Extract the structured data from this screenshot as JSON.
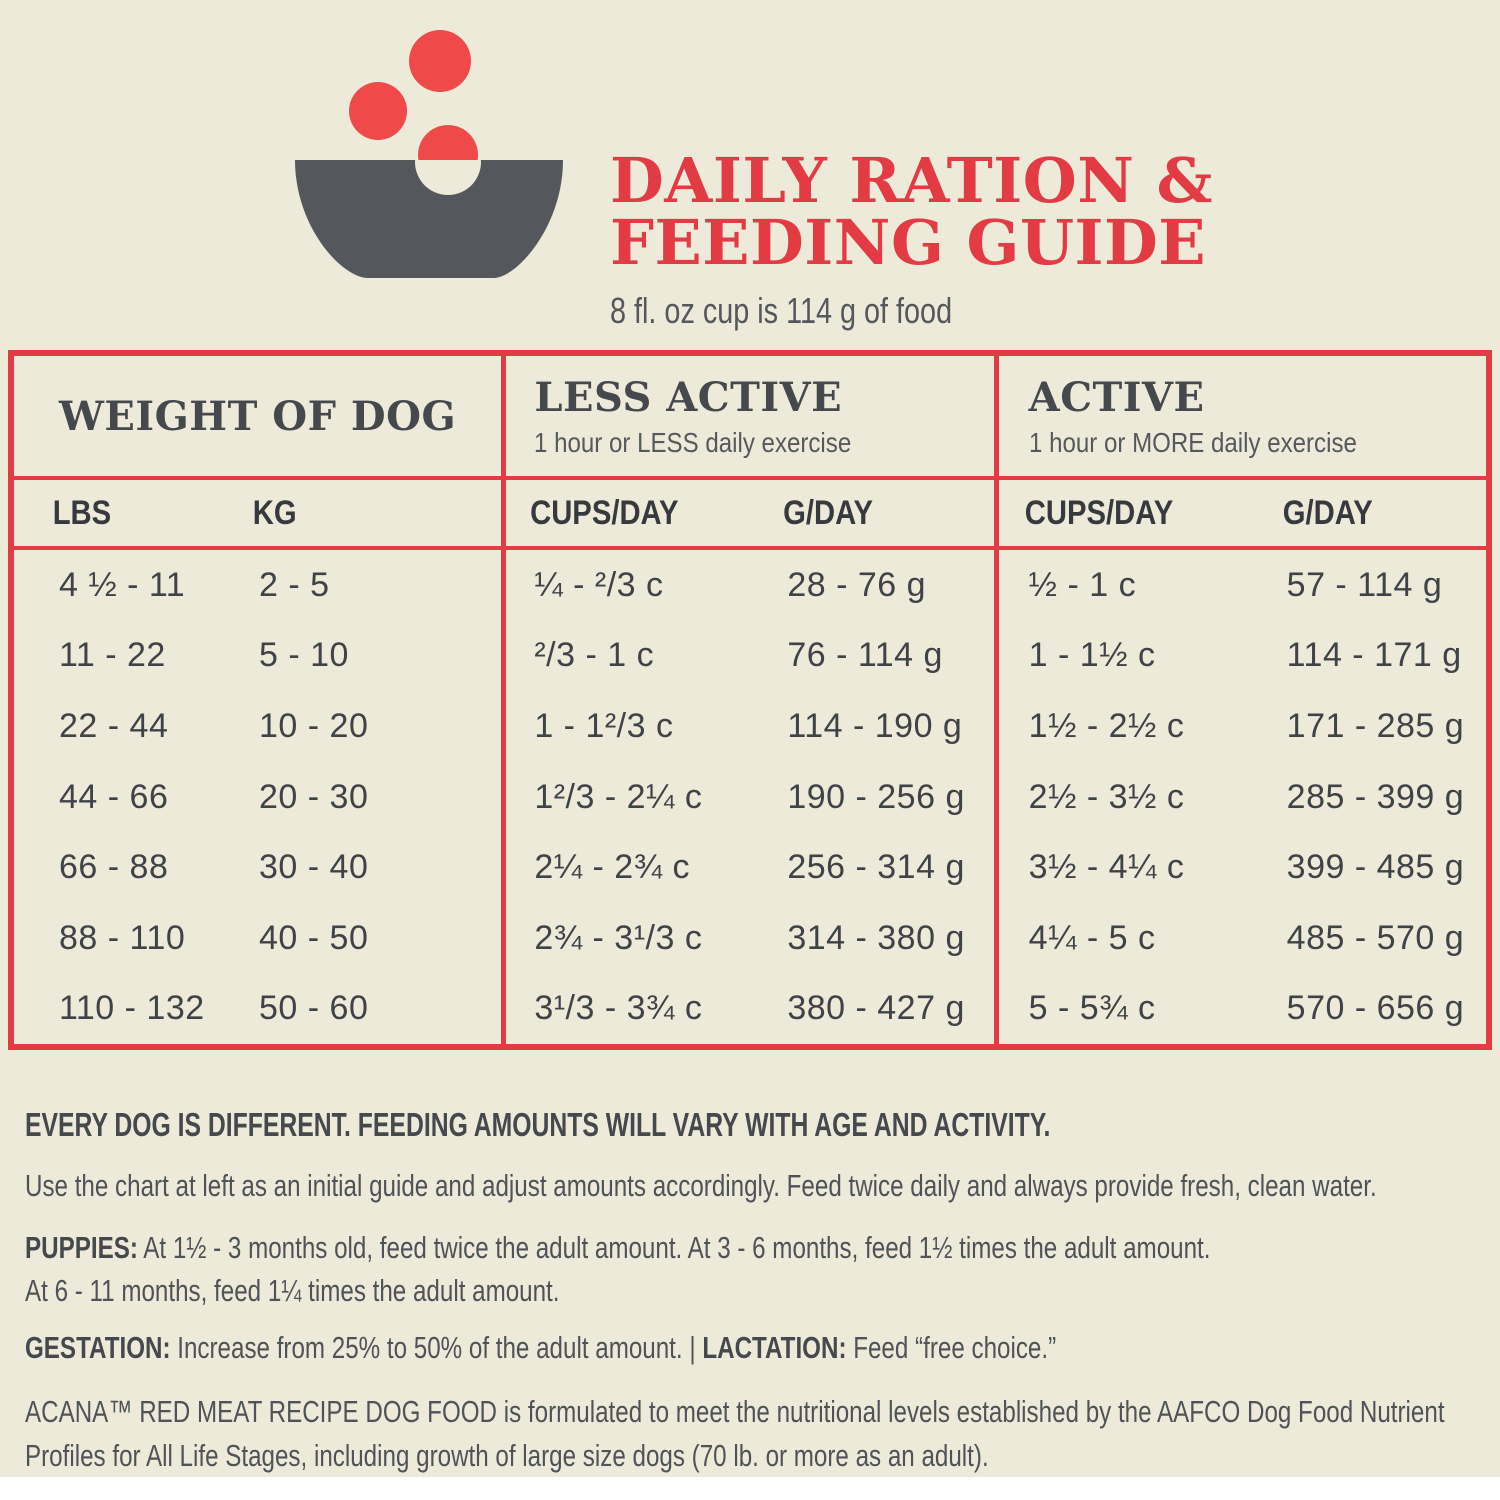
{
  "colors": {
    "background": "#EDEAD9",
    "accent_red": "#E23B43",
    "kibble_red": "#F0494A",
    "bowl_gray": "#54575B",
    "heading_gray": "#45484D",
    "body_text_gray": "#4F5358",
    "table_text_gray": "#3F4347",
    "bottom_strip_white": "#FFFFFF"
  },
  "header": {
    "icon": "bowl-with-kibble-icon",
    "title_line1": "DAILY RATION &",
    "title_line2": "FEEDING GUIDE",
    "subtitle": "8 fl. oz cup is 114 g of food"
  },
  "table": {
    "groups": [
      {
        "title": "WEIGHT OF DOG",
        "subtitle": "",
        "columns": [
          "LBS",
          "KG"
        ]
      },
      {
        "title": "LESS ACTIVE",
        "subtitle": "1 hour or LESS daily exercise",
        "columns": [
          "CUPS/DAY",
          "G/DAY"
        ]
      },
      {
        "title": "ACTIVE",
        "subtitle": "1 hour or MORE daily exercise",
        "columns": [
          "CUPS/DAY",
          "G/DAY"
        ]
      }
    ],
    "rows": [
      {
        "lbs": "4 ½ - 11",
        "kg": "2 - 5",
        "less_active_cups": "¼ - ²/3 c",
        "less_active_g": "28 - 76 g",
        "active_cups": "½ - 1 c",
        "active_g": "57 - 114 g"
      },
      {
        "lbs": "11 - 22",
        "kg": "5 - 10",
        "less_active_cups": "²/3 - 1 c",
        "less_active_g": "76 - 114 g",
        "active_cups": "1 - 1½ c",
        "active_g": "114 - 171 g"
      },
      {
        "lbs": "22 - 44",
        "kg": "10 - 20",
        "less_active_cups": "1 - 1²/3 c",
        "less_active_g": "114 - 190 g",
        "active_cups": "1½ - 2½ c",
        "active_g": "171 - 285 g"
      },
      {
        "lbs": "44 - 66",
        "kg": "20 - 30",
        "less_active_cups": "1²/3 - 2¼ c",
        "less_active_g": "190 - 256 g",
        "active_cups": "2½ - 3½ c",
        "active_g": "285 - 399 g"
      },
      {
        "lbs": "66 - 88",
        "kg": "30 - 40",
        "less_active_cups": "2¼ - 2¾ c",
        "less_active_g": "256 - 314 g",
        "active_cups": "3½ - 4¼ c",
        "active_g": "399 - 485 g"
      },
      {
        "lbs": "88 - 110",
        "kg": "40 - 50",
        "less_active_cups": "2¾ - 3¹/3 c",
        "less_active_g": "314 - 380 g",
        "active_cups": "4¼ - 5 c",
        "active_g": "485 - 570 g"
      },
      {
        "lbs": "110 - 132",
        "kg": "50 - 60",
        "less_active_cups": "3¹/3 - 3¾ c",
        "less_active_g": "380 - 427 g",
        "active_cups": "5 - 5¾ c",
        "active_g": "570 - 656 g"
      }
    ]
  },
  "footer": {
    "heading": "EVERY DOG IS DIFFERENT. FEEDING AMOUNTS WILL VARY WITH AGE AND ACTIVITY.",
    "intro": "Use the chart at left as an initial guide and adjust amounts accordingly. Feed twice daily and always provide fresh, clean water.",
    "puppies_label": "PUPPIES:",
    "puppies_line1": " At 1½ - 3 months old, feed twice the adult amount. At 3 - 6 months, feed 1½ times the adult amount.",
    "puppies_line2": "At 6 - 11 months, feed 1¼ times the adult amount.",
    "gestation_label": "GESTATION:",
    "gestation_text": " Increase from 25% to 50% of the adult amount. | ",
    "lactation_label": "LACTATION:",
    "lactation_text": " Feed “free choice.”",
    "aafco_line1": "ACANA™ RED MEAT RECIPE DOG FOOD is formulated to meet the nutritional levels established by the AAFCO Dog Food Nutrient",
    "aafco_line2": "Profiles for All Life Stages, including growth of large size dogs (70 lb. or more as an adult)."
  }
}
